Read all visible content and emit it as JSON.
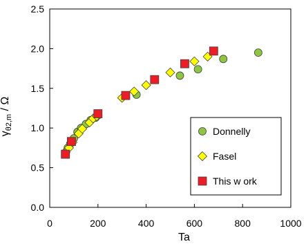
{
  "chart_data": {
    "type": "scatter",
    "xlabel": "Ta",
    "ylabel": "γ_{θ2,m} / Ω",
    "ylabel_parts": {
      "main": "γ",
      "sub": "θ2,m",
      "rest": " / Ω"
    },
    "xlim": [
      0,
      1000
    ],
    "ylim": [
      0.0,
      2.5
    ],
    "xticks": [
      0,
      200,
      400,
      600,
      800,
      1000
    ],
    "yticks": [
      0.0,
      0.5,
      1.0,
      1.5,
      2.0,
      2.5
    ],
    "xtick_labels": [
      "0",
      "200",
      "400",
      "600",
      "800",
      "1000"
    ],
    "ytick_labels": [
      "0.0",
      "0.5",
      "1.0",
      "1.5",
      "2.0",
      "2.5"
    ],
    "grid": false,
    "legend_position": "bottom-right",
    "series": [
      {
        "name": "Donnelly",
        "marker": "circle",
        "fill": "#8DC63F",
        "points": [
          [
            68,
            0.7
          ],
          [
            75,
            0.75
          ],
          [
            85,
            0.8
          ],
          [
            100,
            0.87
          ],
          [
            115,
            0.95
          ],
          [
            130,
            1.0
          ],
          [
            150,
            1.05
          ],
          [
            170,
            1.1
          ],
          [
            190,
            1.13
          ],
          [
            200,
            1.16
          ],
          [
            360,
            1.42
          ],
          [
            540,
            1.66
          ],
          [
            615,
            1.74
          ],
          [
            720,
            1.87
          ],
          [
            865,
            1.95
          ]
        ]
      },
      {
        "name": "Fasel",
        "marker": "diamond",
        "fill": "#FFFF00",
        "points": [
          [
            80,
            0.75
          ],
          [
            95,
            0.82
          ],
          [
            120,
            0.93
          ],
          [
            135,
            0.99
          ],
          [
            165,
            1.07
          ],
          [
            180,
            1.12
          ],
          [
            195,
            1.15
          ],
          [
            300,
            1.38
          ],
          [
            350,
            1.46
          ],
          [
            400,
            1.54
          ],
          [
            500,
            1.7
          ],
          [
            600,
            1.84
          ],
          [
            655,
            1.9
          ]
        ]
      },
      {
        "name": "This w ork",
        "marker": "square",
        "fill": "#EE1C25",
        "points": [
          [
            65,
            0.67
          ],
          [
            90,
            0.83
          ],
          [
            200,
            1.18
          ],
          [
            315,
            1.41
          ],
          [
            435,
            1.61
          ],
          [
            560,
            1.81
          ],
          [
            680,
            1.97
          ]
        ]
      }
    ]
  }
}
